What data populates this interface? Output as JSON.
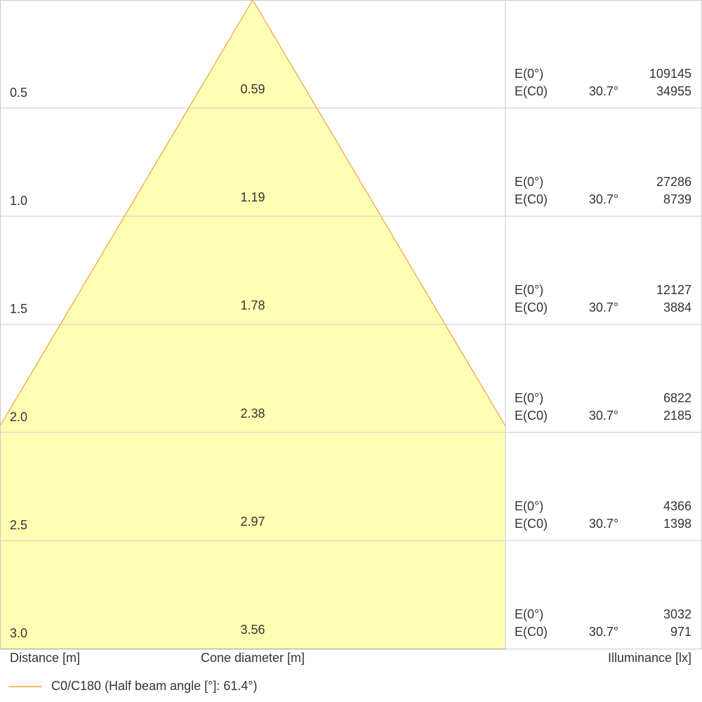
{
  "rows": [
    {
      "distance": "0.5",
      "diameter": "0.59",
      "e0_label": "E(0°)",
      "e0": "109145",
      "ec0_label": "E(C0)",
      "angle": "30.7°",
      "ec0": "34955"
    },
    {
      "distance": "1.0",
      "diameter": "1.19",
      "e0_label": "E(0°)",
      "e0": "27286",
      "ec0_label": "E(C0)",
      "angle": "30.7°",
      "ec0": "8739"
    },
    {
      "distance": "1.5",
      "diameter": "1.78",
      "e0_label": "E(0°)",
      "e0": "12127",
      "ec0_label": "E(C0)",
      "angle": "30.7°",
      "ec0": "3884"
    },
    {
      "distance": "2.0",
      "diameter": "2.38",
      "e0_label": "E(0°)",
      "e0": "6822",
      "ec0_label": "E(C0)",
      "angle": "30.7°",
      "ec0": "2185"
    },
    {
      "distance": "2.5",
      "diameter": "2.97",
      "e0_label": "E(0°)",
      "e0": "4366",
      "ec0_label": "E(C0)",
      "angle": "30.7°",
      "ec0": "1398"
    },
    {
      "distance": "3.0",
      "diameter": "3.56",
      "e0_label": "E(0°)",
      "e0": "3032",
      "ec0_label": "E(C0)",
      "angle": "30.7°",
      "ec0": "971"
    }
  ],
  "footer": {
    "distance": "Distance [m]",
    "diameter": "Cone diameter [m]",
    "illuminance": "Illuminance [lx]"
  },
  "legend": "C0/C180 (Half beam angle [°]: 61.4°)"
}
